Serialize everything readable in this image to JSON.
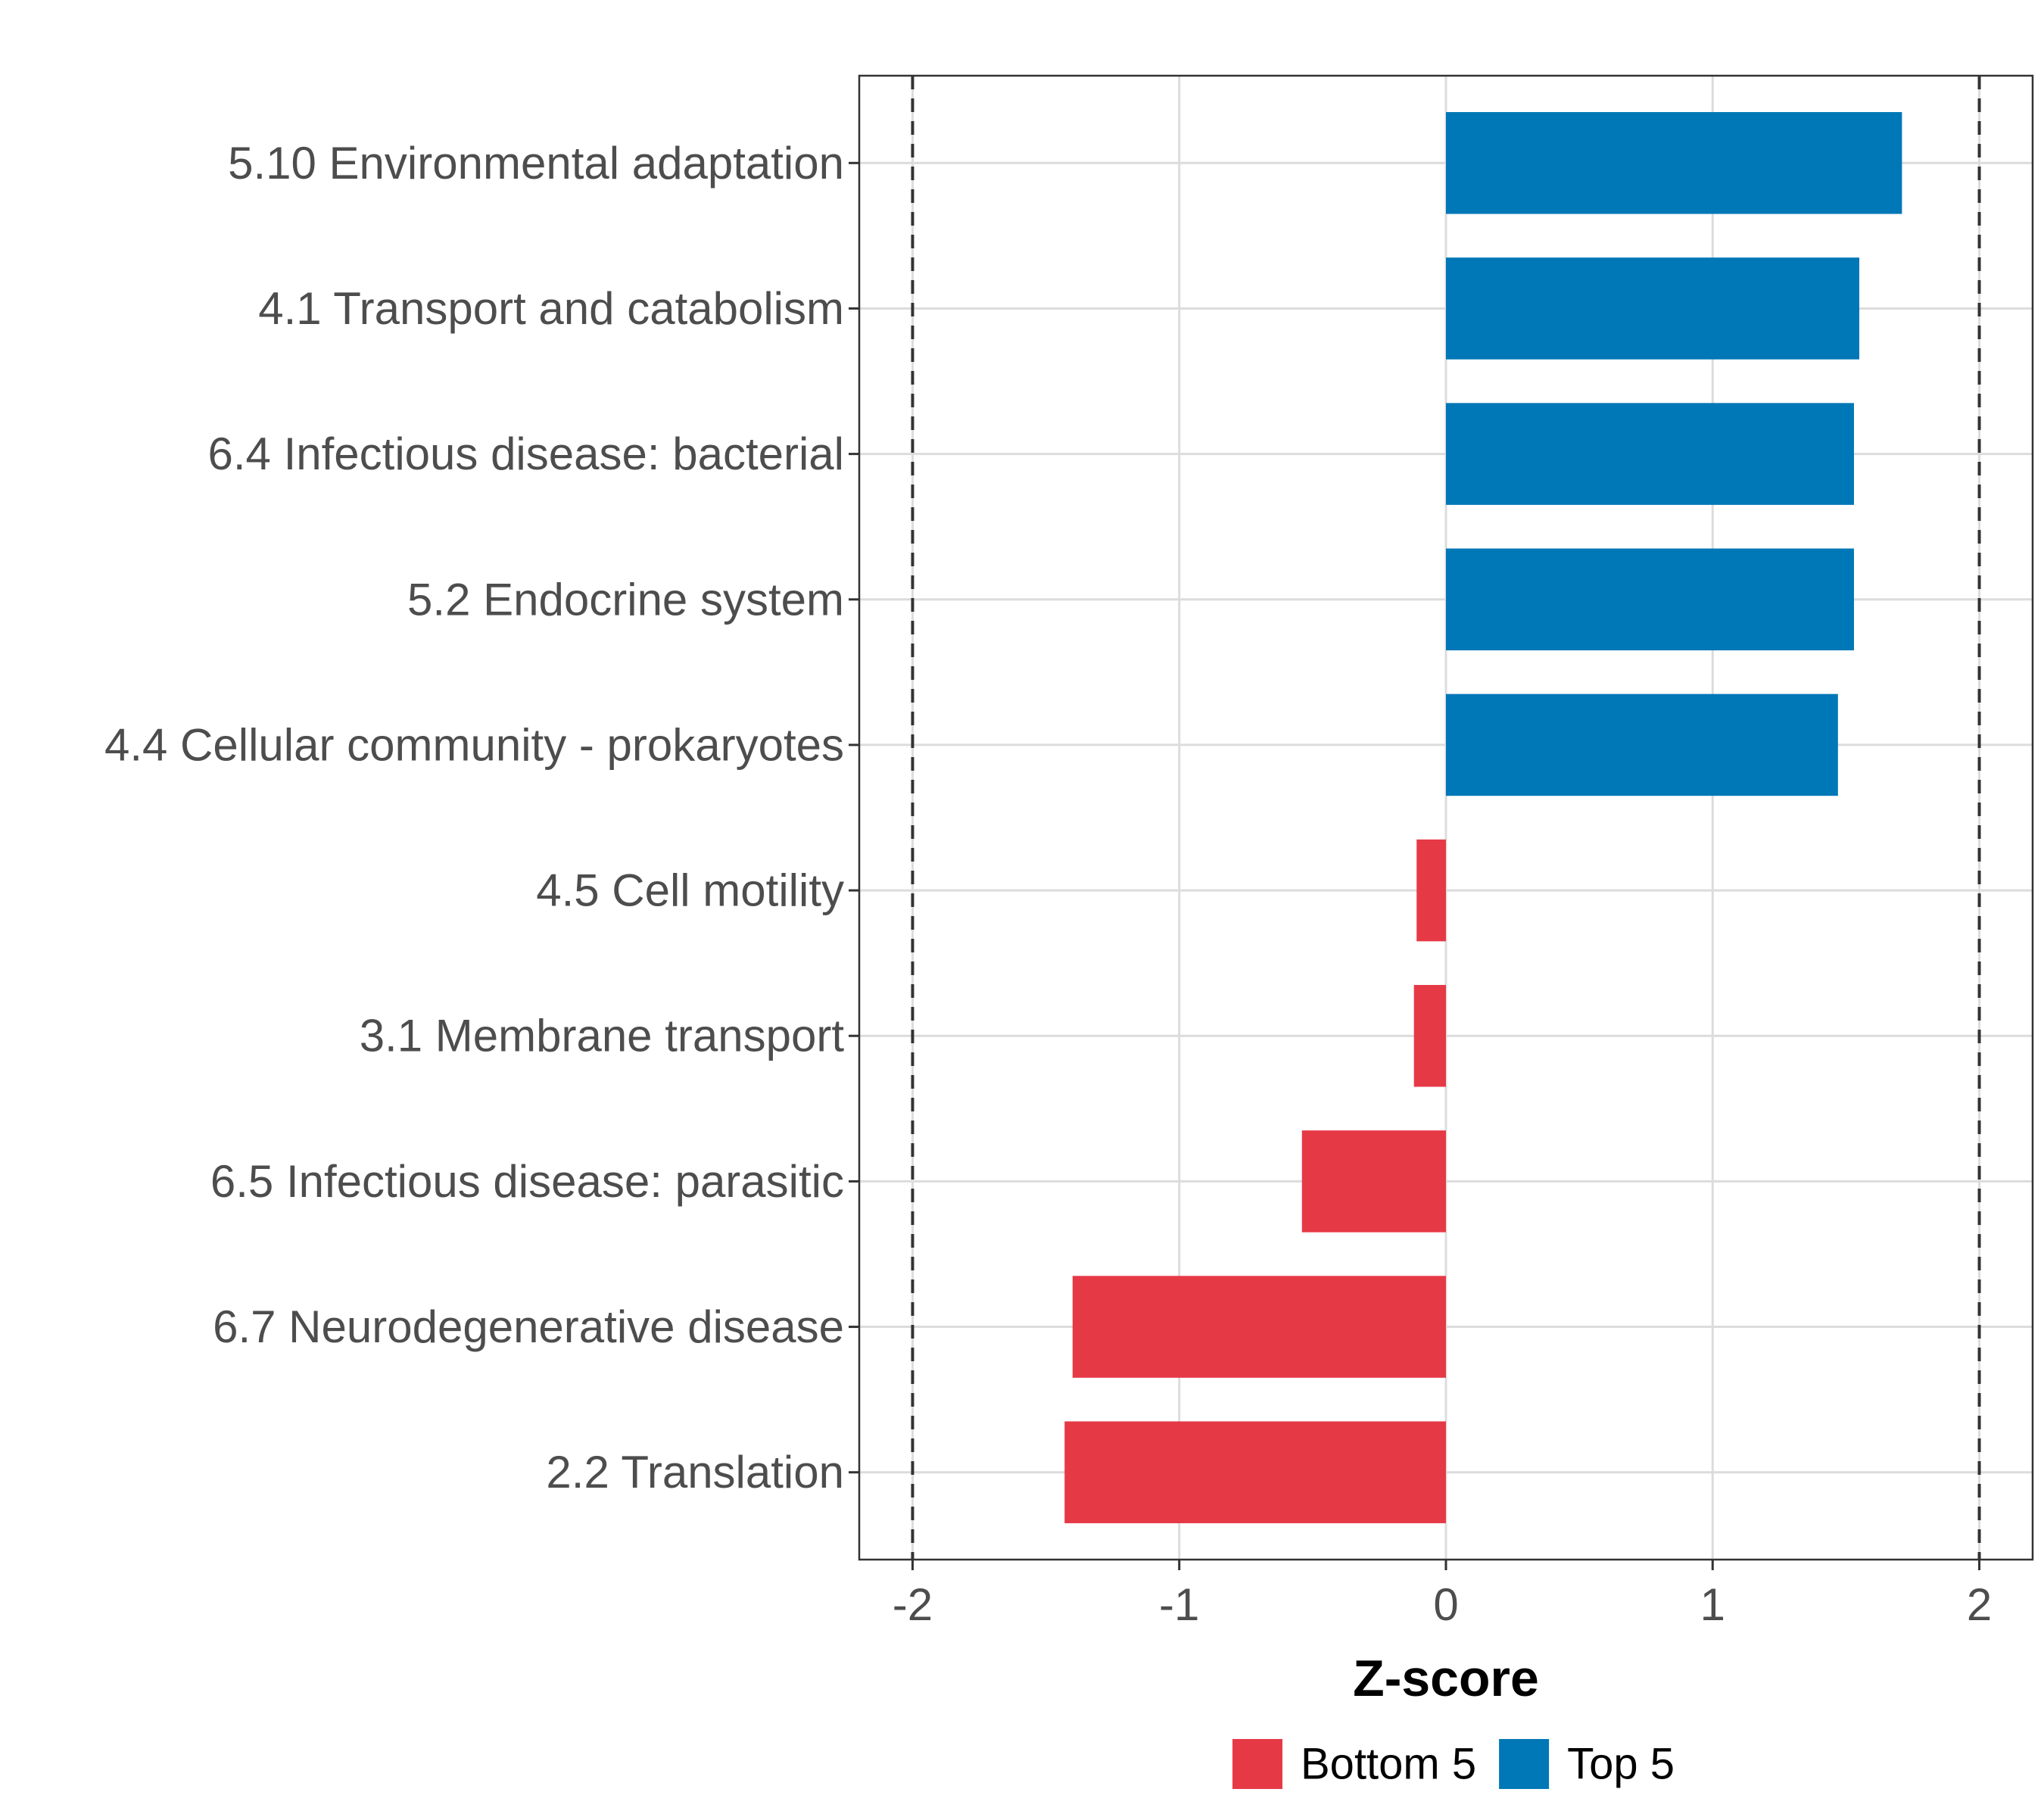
{
  "chart_data": {
    "type": "bar",
    "orientation": "horizontal",
    "categories": [
      "5.10 Environmental adaptation",
      "4.1 Transport and catabolism",
      "6.4 Infectious disease: bacterial",
      "5.2 Endocrine system",
      "4.4 Cellular community - prokaryotes",
      "4.5 Cell motility",
      "3.1 Membrane transport",
      "6.5 Infectious disease: parasitic",
      "6.7 Neurodegenerative disease",
      "2.2 Translation"
    ],
    "values": [
      1.71,
      1.55,
      1.53,
      1.53,
      1.47,
      -0.11,
      -0.12,
      -0.54,
      -1.4,
      -1.43
    ],
    "groups": [
      "Top 5",
      "Top 5",
      "Top 5",
      "Top 5",
      "Top 5",
      "Bottom 5",
      "Bottom 5",
      "Bottom 5",
      "Bottom 5",
      "Bottom 5"
    ],
    "xlabel": "Z-score",
    "ylabel": "",
    "xlim": [
      -2.2,
      2.2
    ],
    "xticks": [
      -2,
      -1,
      0,
      1,
      2
    ],
    "xtick_labels": [
      "-2",
      "-1",
      "0",
      "1",
      "2"
    ],
    "reference_lines": [
      -2,
      2
    ],
    "grid": true,
    "legend": {
      "position": "bottom",
      "items": [
        {
          "label": "Bottom 5",
          "color": "#e63946"
        },
        {
          "label": "Top 5",
          "color": "#0077b6"
        }
      ]
    },
    "colors": {
      "Top 5": "#0077b6",
      "Bottom 5": "#e63946"
    }
  }
}
